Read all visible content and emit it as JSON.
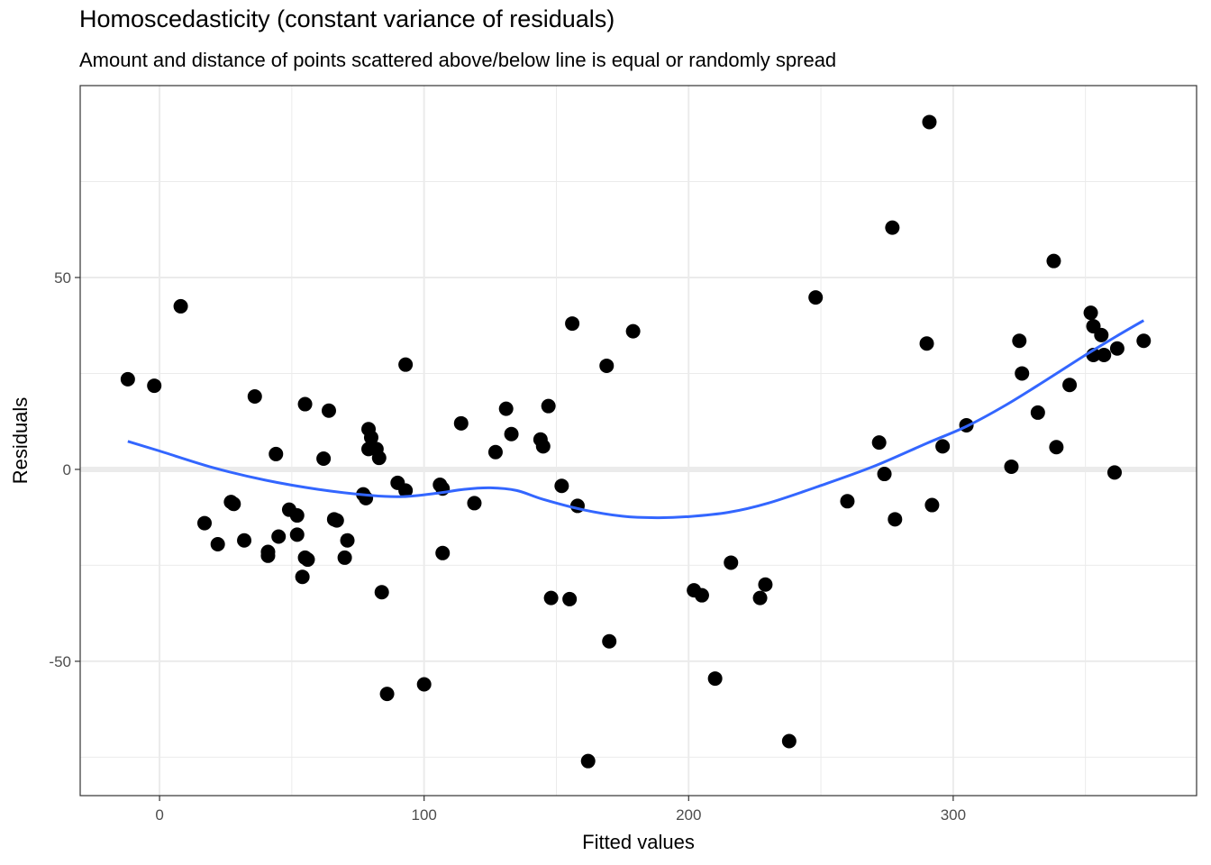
{
  "chart_data": {
    "type": "scatter",
    "title": "Homoscedasticity (constant variance of residuals)",
    "subtitle": "Amount and distance of points scattered above/below line is equal or randomly spread",
    "xlabel": "Fitted values",
    "ylabel": "Residuals",
    "xlim": [
      -30,
      392
    ],
    "ylim": [
      -85,
      100
    ],
    "x_ticks": [
      0,
      100,
      200,
      300
    ],
    "y_ticks": [
      -50,
      0,
      50
    ],
    "x_tick_labels": [
      "0",
      "100",
      "200",
      "300"
    ],
    "y_tick_labels": [
      "-50",
      "0",
      "50"
    ],
    "grid": true,
    "reference_line_y": 0,
    "colors": {
      "points": "#000000",
      "smooth": "#3366FF",
      "panel_border": "#333333",
      "grid": "#EBEBEB"
    },
    "points": [
      {
        "x": -12,
        "y": 23.5
      },
      {
        "x": -2,
        "y": 21.8
      },
      {
        "x": 8,
        "y": 42.5
      },
      {
        "x": 17,
        "y": -14
      },
      {
        "x": 22,
        "y": -19.5
      },
      {
        "x": 27,
        "y": -8.5
      },
      {
        "x": 28,
        "y": -9
      },
      {
        "x": 32,
        "y": -18.5
      },
      {
        "x": 36,
        "y": 19
      },
      {
        "x": 41,
        "y": -21.5
      },
      {
        "x": 41,
        "y": -22.5
      },
      {
        "x": 44,
        "y": 4
      },
      {
        "x": 45,
        "y": -17.5
      },
      {
        "x": 49,
        "y": -10.5
      },
      {
        "x": 52,
        "y": -12
      },
      {
        "x": 52,
        "y": -17
      },
      {
        "x": 54,
        "y": -28
      },
      {
        "x": 55,
        "y": 17
      },
      {
        "x": 55,
        "y": -23
      },
      {
        "x": 56,
        "y": -23.5
      },
      {
        "x": 62,
        "y": 2.8
      },
      {
        "x": 64,
        "y": 15.3
      },
      {
        "x": 66,
        "y": -13
      },
      {
        "x": 67,
        "y": -13.3
      },
      {
        "x": 70,
        "y": -23
      },
      {
        "x": 71,
        "y": -18.5
      },
      {
        "x": 77,
        "y": -6.5
      },
      {
        "x": 78,
        "y": -7.5
      },
      {
        "x": 79,
        "y": 10.5
      },
      {
        "x": 79,
        "y": 5.3
      },
      {
        "x": 80,
        "y": 8.3
      },
      {
        "x": 82,
        "y": 5.3
      },
      {
        "x": 83,
        "y": 3
      },
      {
        "x": 84,
        "y": -32
      },
      {
        "x": 86,
        "y": -58.5
      },
      {
        "x": 90,
        "y": -3.5
      },
      {
        "x": 93,
        "y": -5.5
      },
      {
        "x": 93,
        "y": 27.3
      },
      {
        "x": 100,
        "y": -56
      },
      {
        "x": 106,
        "y": -4
      },
      {
        "x": 107,
        "y": -21.8
      },
      {
        "x": 107,
        "y": -5
      },
      {
        "x": 114,
        "y": 12
      },
      {
        "x": 119,
        "y": -8.8
      },
      {
        "x": 127,
        "y": 4.5
      },
      {
        "x": 131,
        "y": 15.8
      },
      {
        "x": 133,
        "y": 9.2
      },
      {
        "x": 144,
        "y": 7.8
      },
      {
        "x": 145,
        "y": 6
      },
      {
        "x": 147,
        "y": 16.5
      },
      {
        "x": 148,
        "y": -33.5
      },
      {
        "x": 152,
        "y": -4.3
      },
      {
        "x": 155,
        "y": -33.8
      },
      {
        "x": 156,
        "y": 38
      },
      {
        "x": 158,
        "y": -9.5
      },
      {
        "x": 162,
        "y": -76
      },
      {
        "x": 169,
        "y": 27
      },
      {
        "x": 170,
        "y": -44.8
      },
      {
        "x": 179,
        "y": 36
      },
      {
        "x": 202,
        "y": -31.5
      },
      {
        "x": 205,
        "y": -32.8
      },
      {
        "x": 210,
        "y": -54.5
      },
      {
        "x": 216,
        "y": -24.3
      },
      {
        "x": 227,
        "y": -33.5
      },
      {
        "x": 229,
        "y": -30
      },
      {
        "x": 238,
        "y": -70.8
      },
      {
        "x": 248,
        "y": 44.8
      },
      {
        "x": 260,
        "y": -8.3
      },
      {
        "x": 272,
        "y": 7
      },
      {
        "x": 274,
        "y": -1.2
      },
      {
        "x": 277,
        "y": 63
      },
      {
        "x": 278,
        "y": -13
      },
      {
        "x": 290,
        "y": 32.8
      },
      {
        "x": 291,
        "y": 90.5
      },
      {
        "x": 292,
        "y": -9.3
      },
      {
        "x": 296,
        "y": 6
      },
      {
        "x": 305,
        "y": 11.5
      },
      {
        "x": 322,
        "y": 0.7
      },
      {
        "x": 325,
        "y": 33.5
      },
      {
        "x": 326,
        "y": 25
      },
      {
        "x": 332,
        "y": 14.8
      },
      {
        "x": 338,
        "y": 54.3
      },
      {
        "x": 339,
        "y": 5.8
      },
      {
        "x": 344,
        "y": 22
      },
      {
        "x": 352,
        "y": 40.8
      },
      {
        "x": 353,
        "y": 37.3
      },
      {
        "x": 353,
        "y": 29.8
      },
      {
        "x": 356,
        "y": 35
      },
      {
        "x": 357,
        "y": 29.8
      },
      {
        "x": 361,
        "y": -0.8
      },
      {
        "x": 362,
        "y": 31.5
      },
      {
        "x": 372,
        "y": 33.5
      }
    ],
    "smooth_line": [
      {
        "x": -12,
        "y": 7.3
      },
      {
        "x": 0,
        "y": 4.8
      },
      {
        "x": 20,
        "y": 0.5
      },
      {
        "x": 40,
        "y": -2.8
      },
      {
        "x": 60,
        "y": -5.2
      },
      {
        "x": 80,
        "y": -6.8
      },
      {
        "x": 92,
        "y": -7.1
      },
      {
        "x": 105,
        "y": -6.2
      },
      {
        "x": 115,
        "y": -5.2
      },
      {
        "x": 125,
        "y": -4.8
      },
      {
        "x": 135,
        "y": -5.5
      },
      {
        "x": 145,
        "y": -7.8
      },
      {
        "x": 160,
        "y": -10.5
      },
      {
        "x": 175,
        "y": -12.2
      },
      {
        "x": 188,
        "y": -12.6
      },
      {
        "x": 200,
        "y": -12.3
      },
      {
        "x": 215,
        "y": -11.2
      },
      {
        "x": 230,
        "y": -8.8
      },
      {
        "x": 250,
        "y": -4.2
      },
      {
        "x": 270,
        "y": 0.8
      },
      {
        "x": 290,
        "y": 6.8
      },
      {
        "x": 305,
        "y": 11.2
      },
      {
        "x": 320,
        "y": 16.8
      },
      {
        "x": 335,
        "y": 23.2
      },
      {
        "x": 350,
        "y": 29.8
      },
      {
        "x": 362,
        "y": 34.8
      },
      {
        "x": 372,
        "y": 38.8
      }
    ]
  }
}
